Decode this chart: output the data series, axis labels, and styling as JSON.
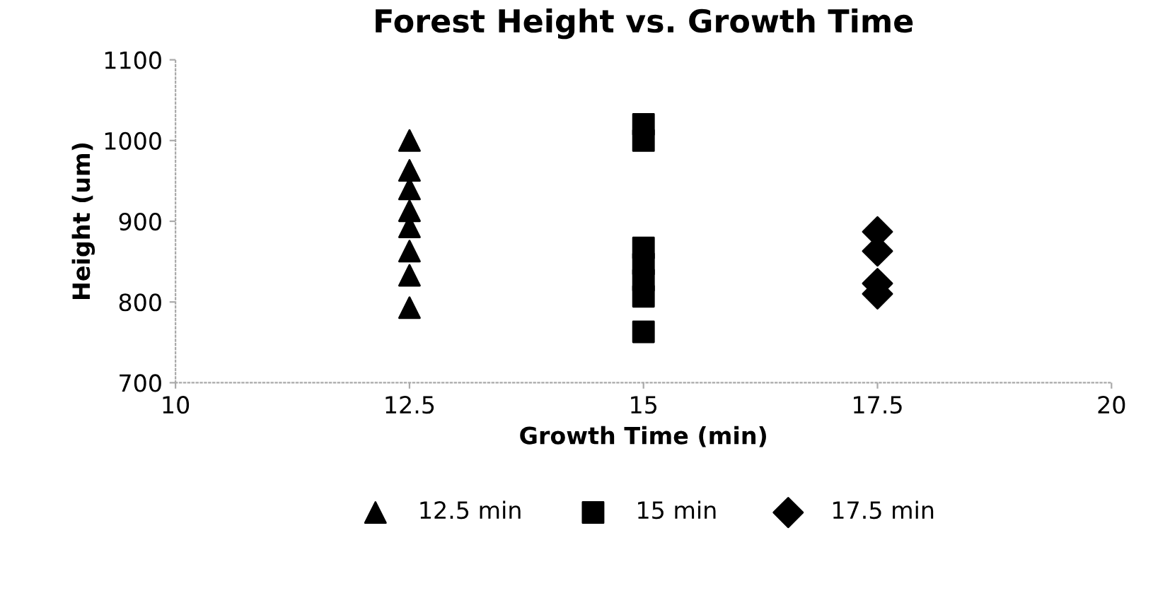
{
  "chart_data": {
    "type": "scatter",
    "title": "Forest Height vs. Growth Time",
    "xlabel": "Growth Time (min)",
    "ylabel": "Height (um)",
    "xlim": [
      10,
      20
    ],
    "xticks": [
      10,
      12.5,
      15,
      17.5,
      20
    ],
    "ylim": [
      700,
      1100
    ],
    "yticks": [
      700,
      800,
      900,
      1000,
      1100
    ],
    "grid": false,
    "legend": "bottom",
    "series": [
      {
        "name": "12.5 min",
        "color": "#000000",
        "marker": "triangle",
        "x": [
          12.5,
          12.5,
          12.5,
          12.5,
          12.5,
          12.5,
          12.5,
          12.5
        ],
        "values": [
          1000,
          963,
          940,
          913,
          893,
          863,
          833,
          793
        ]
      },
      {
        "name": "15 min",
        "color": "#000000",
        "marker": "square",
        "x": [
          15,
          15,
          15,
          15,
          15,
          15,
          15
        ],
        "values": [
          1020,
          1000,
          867,
          847,
          827,
          807,
          763
        ]
      },
      {
        "name": "17.5 min",
        "color": "#000000",
        "marker": "diamond",
        "x": [
          17.5,
          17.5,
          17.5,
          17.5
        ],
        "values": [
          887,
          863,
          823,
          810
        ]
      }
    ]
  }
}
